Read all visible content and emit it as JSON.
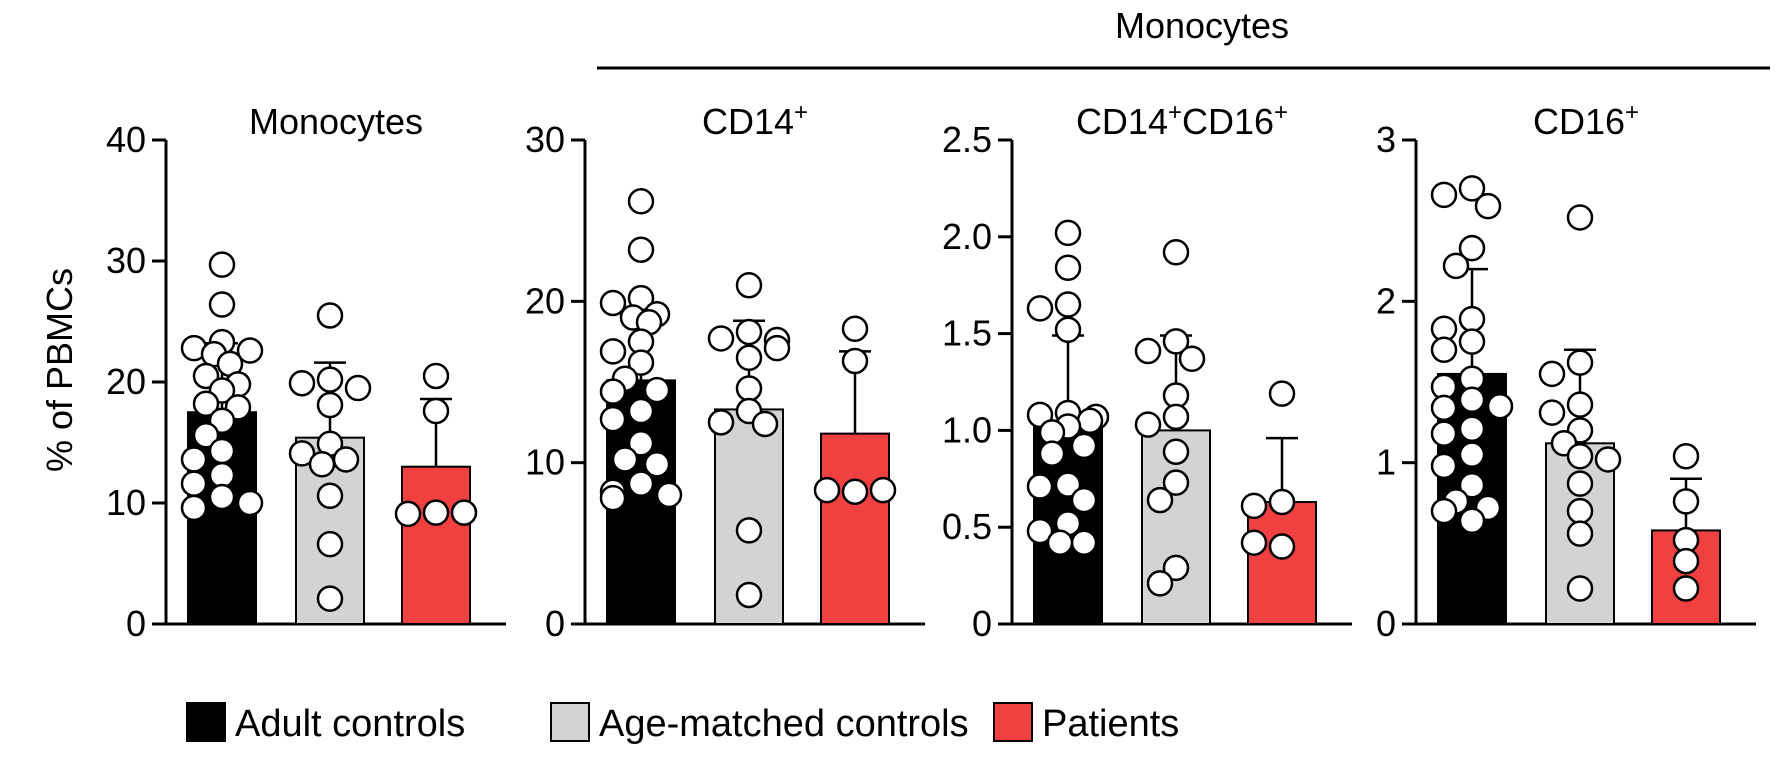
{
  "figure": {
    "group_title": "Monocytes",
    "ylabel": "% of PBMCs"
  },
  "legend": [
    {
      "label": "Adult controls",
      "color": "#000000"
    },
    {
      "label": "Age-matched controls",
      "color": "#d3d3d3"
    },
    {
      "label": "Patients",
      "color": "#f04040"
    }
  ],
  "chart_data": [
    {
      "type": "bar",
      "title": "Monocytes",
      "title_sup": "",
      "title_parts": [
        {
          "t": "Monocytes",
          "sup": false
        }
      ],
      "ylabel": "% of PBMCs",
      "ylim": [
        0,
        40
      ],
      "yticks": [
        0,
        10,
        20,
        30,
        40
      ],
      "ytick_labels": [
        "0",
        "10",
        "20",
        "30",
        "40"
      ],
      "categories": [
        "Adult controls",
        "Age-matched controls",
        "Patients"
      ],
      "values": [
        17.5,
        15.4,
        13.0
      ],
      "sd_upper": [
        23.2,
        21.6,
        18.6
      ],
      "points": [
        [
          29.7,
          26.4,
          23.3,
          22.8,
          22.6,
          22.3,
          21.5,
          20.5,
          19.8,
          19.3,
          18.2,
          17.9,
          16.8,
          15.6,
          14.3,
          13.6,
          12.3,
          11.6,
          10.5,
          10.0,
          9.6
        ],
        [
          25.5,
          20.2,
          19.9,
          19.5,
          18.1,
          14.9,
          14.1,
          13.6,
          13.2,
          10.6,
          6.6,
          2.1
        ],
        [
          20.5,
          17.6,
          9.2,
          9.1,
          9.2
        ]
      ]
    },
    {
      "type": "bar",
      "title": "CD14",
      "title_sup": "+",
      "title_parts": [
        {
          "t": "CD14",
          "sup": false
        },
        {
          "t": "+",
          "sup": true
        }
      ],
      "ylim": [
        0,
        30
      ],
      "yticks": [
        0,
        10,
        20,
        30
      ],
      "ytick_labels": [
        "0",
        "10",
        "20",
        "30"
      ],
      "categories": [
        "Adult controls",
        "Age-matched controls",
        "Patients"
      ],
      "values": [
        15.1,
        13.3,
        11.8
      ],
      "sd_upper": [
        19.0,
        18.8,
        16.9
      ],
      "points": [
        [
          26.2,
          23.2,
          20.2,
          19.9,
          19.2,
          19.0,
          18.7,
          17.5,
          16.9,
          16.2,
          15.2,
          14.5,
          14.4,
          13.2,
          12.7,
          11.2,
          10.2,
          9.9,
          8.7,
          8.2,
          8.0,
          7.8
        ],
        [
          21.0,
          18.1,
          17.7,
          17.6,
          17.1,
          16.5,
          14.6,
          13.2,
          12.5,
          12.4,
          5.8,
          1.8
        ],
        [
          18.3,
          16.3,
          8.2,
          8.3,
          8.3
        ]
      ]
    },
    {
      "type": "bar",
      "title": "CD14",
      "title_sup": "+",
      "title_parts": [
        {
          "t": "CD14",
          "sup": false
        },
        {
          "t": "+",
          "sup": true
        },
        {
          "t": "CD16",
          "sup": false
        },
        {
          "t": "+",
          "sup": true
        }
      ],
      "ylim": [
        0,
        2.5
      ],
      "yticks": [
        0,
        0.5,
        1.0,
        1.5,
        2.0,
        2.5
      ],
      "ytick_labels": [
        "0",
        "0.5",
        "1.0",
        "1.5",
        "2.0",
        "2.5"
      ],
      "categories": [
        "Adult controls",
        "Age-matched controls",
        "Patients"
      ],
      "values": [
        1.02,
        1.0,
        0.63
      ],
      "sd_upper": [
        1.49,
        1.49,
        0.96
      ],
      "points": [
        [
          2.02,
          1.84,
          1.65,
          1.63,
          1.52,
          1.09,
          1.08,
          1.07,
          1.05,
          1.02,
          0.99,
          0.92,
          0.88,
          0.72,
          0.71,
          0.64,
          0.52,
          0.48,
          0.42,
          0.42
        ],
        [
          1.92,
          1.46,
          1.41,
          1.37,
          1.18,
          1.07,
          1.03,
          0.89,
          0.73,
          0.64,
          0.29,
          0.21
        ],
        [
          1.19,
          0.63,
          0.61,
          0.4,
          0.42
        ]
      ]
    },
    {
      "type": "bar",
      "title": "CD16",
      "title_sup": "+",
      "title_parts": [
        {
          "t": "CD16",
          "sup": false
        },
        {
          "t": "+",
          "sup": true
        }
      ],
      "ylim": [
        0,
        3
      ],
      "yticks": [
        0,
        1,
        2,
        3
      ],
      "ytick_labels": [
        "0",
        "1",
        "2",
        "3"
      ],
      "categories": [
        "Adult controls",
        "Age-matched controls",
        "Patients"
      ],
      "values": [
        1.55,
        1.12,
        0.58
      ],
      "sd_upper": [
        2.2,
        1.7,
        0.9
      ],
      "points": [
        [
          2.7,
          2.66,
          2.59,
          2.33,
          2.22,
          1.89,
          1.83,
          1.75,
          1.7,
          1.52,
          1.47,
          1.39,
          1.35,
          1.34,
          1.21,
          1.18,
          1.05,
          0.98,
          0.86,
          0.76,
          0.72,
          0.7,
          0.64
        ],
        [
          2.52,
          1.62,
          1.55,
          1.36,
          1.31,
          1.2,
          1.12,
          1.04,
          1.02,
          0.87,
          0.7,
          0.56,
          0.22
        ],
        [
          1.04,
          0.76,
          0.52,
          0.39,
          0.22
        ]
      ]
    }
  ]
}
